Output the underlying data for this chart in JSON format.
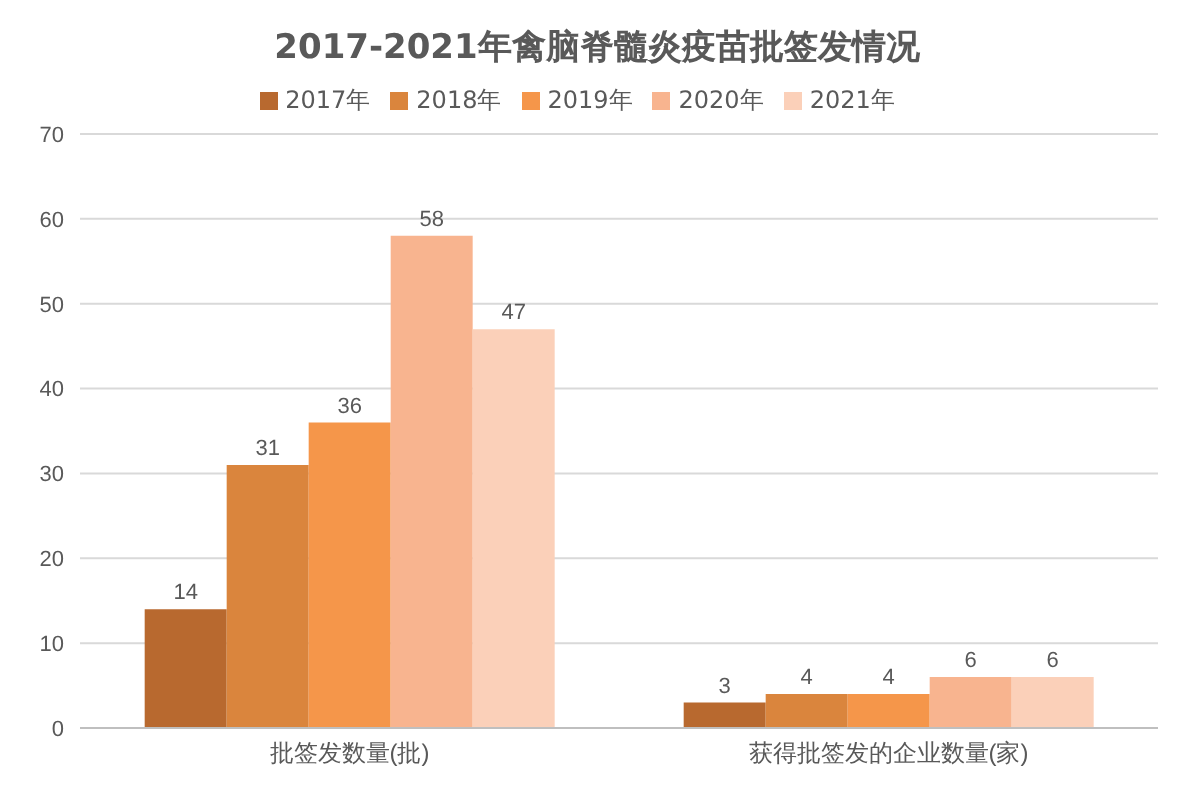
{
  "chart_data": {
    "type": "bar",
    "title": "2017-2021年禽脑脊髓炎疫苗批签发情况",
    "categories": [
      "批签发数量(批)",
      "获得批签发的企业数量(家)"
    ],
    "series": [
      {
        "name": "2017年",
        "color": "#b8692f",
        "values": [
          14,
          3
        ]
      },
      {
        "name": "2018年",
        "color": "#da853d",
        "values": [
          31,
          4
        ]
      },
      {
        "name": "2019年",
        "color": "#f5964a",
        "values": [
          36,
          4
        ]
      },
      {
        "name": "2020年",
        "color": "#f8b48f",
        "values": [
          58,
          6
        ]
      },
      {
        "name": "2021年",
        "color": "#fbd0b9",
        "values": [
          47,
          6
        ]
      }
    ],
    "ylim": [
      0,
      70
    ],
    "yticks": [
      0,
      10,
      20,
      30,
      40,
      50,
      60,
      70
    ],
    "grid": "y",
    "legend": "top",
    "data_labels": true
  }
}
